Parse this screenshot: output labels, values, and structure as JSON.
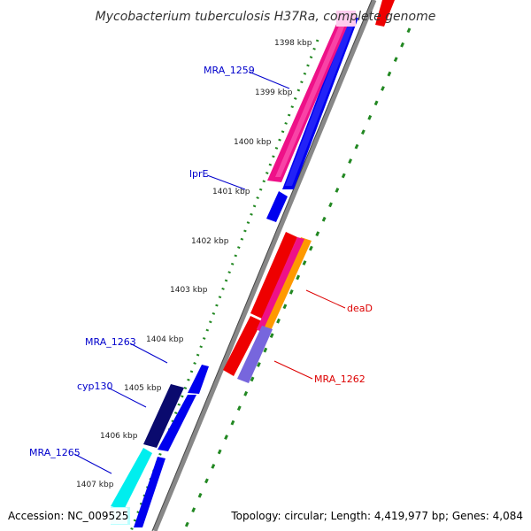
{
  "title": "Mycobacterium tuberculosis H37Ra, complete genome",
  "accession": "Accession: NC_009525",
  "topology": "Topology: circular; Length: 4,419,977 bp; Genes: 4,084",
  "kbp_ticks": [
    "1398 kbp",
    "1399 kbp",
    "1400 kbp",
    "1401 kbp",
    "1402 kbp",
    "1403 kbp",
    "1404 kbp",
    "1405 kbp",
    "1406 kbp",
    "1407 kbp"
  ],
  "gene_labels": [
    "MRA_1259",
    "lprE",
    "MRA_1263",
    "cyp130",
    "MRA_1265",
    "deaD",
    "MRA_1262"
  ],
  "colors": {
    "label_blue": "#0000cc",
    "label_red": "#dd0000",
    "forward_cds": "#0000ee",
    "dark_cds": "#0a0a6e",
    "cyan_cds": "#00eeee",
    "pink_cds": "#ee1188",
    "red_cds": "#ee0000",
    "lavender_cds": "#7766dd",
    "orange_stripe": "#ff9900",
    "dot_green": "#228822",
    "backbone": "#888888"
  }
}
